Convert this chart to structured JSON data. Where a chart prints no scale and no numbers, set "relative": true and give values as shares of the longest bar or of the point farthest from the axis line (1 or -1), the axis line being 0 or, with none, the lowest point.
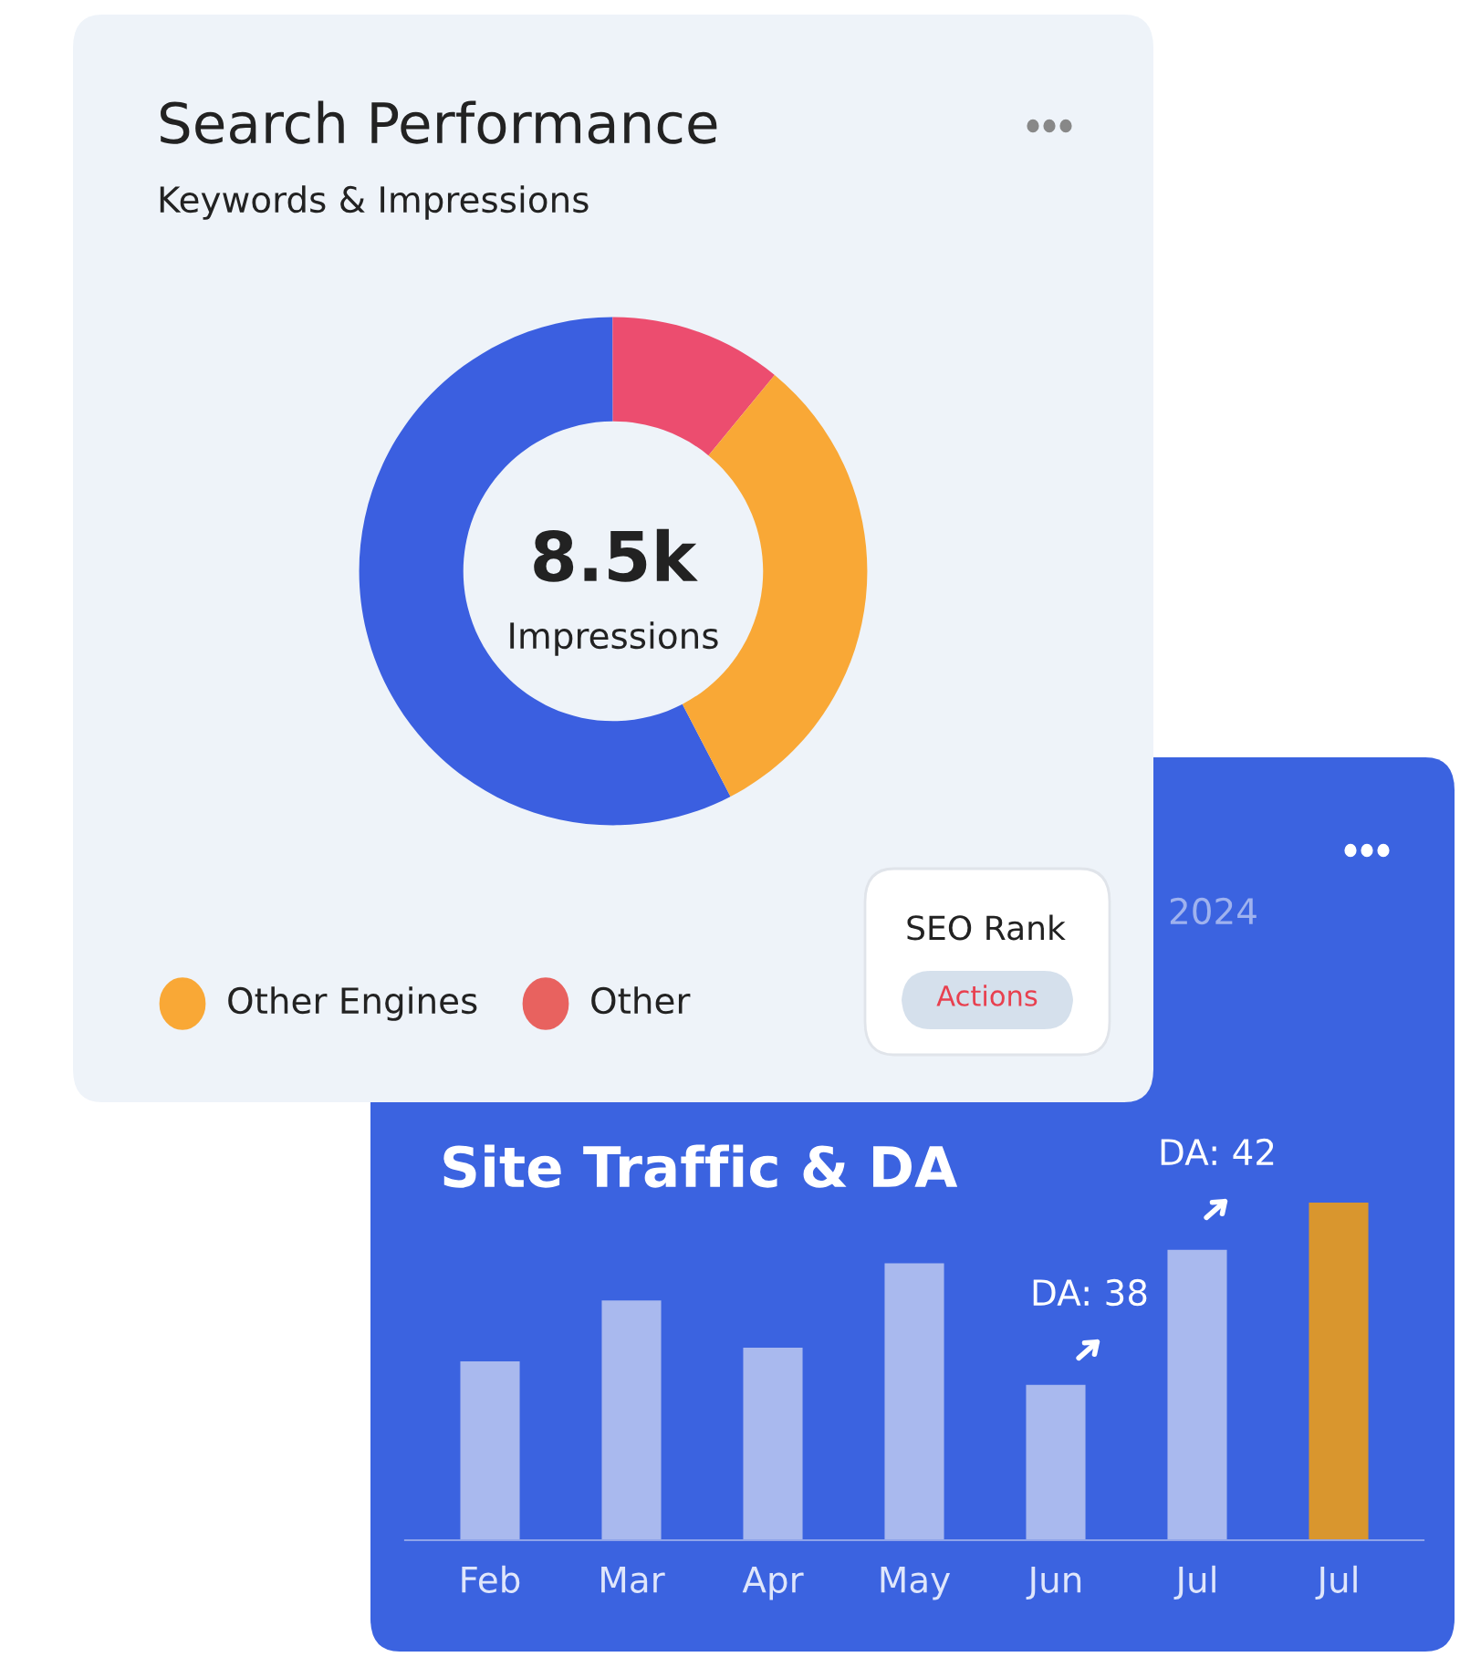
{
  "chart_data": [
    {
      "type": "donut",
      "title": "Search Performance",
      "subtitle": "Keywords & Impressions",
      "categories": [
        null,
        null,
        "Other Engines",
        "Other"
      ],
      "values": [
        57.6,
        11,
        31.4,
        0
      ],
      "colors": [
        "#3b5fe0",
        "#ec4d6f",
        "#f9a836",
        "#e8625f"
      ],
      "legend": "bottom",
      "annotations": [
        "8.5k",
        "Impressions",
        "SEO Rank",
        "Actions"
      ]
    },
    {
      "type": "bar",
      "title": "Site Traffic & DA",
      "categories": [
        "Feb",
        "Mar",
        "Apr",
        "May",
        "Jun",
        "Jul",
        "Jul"
      ],
      "relative": true,
      "values": [
        0.53,
        0.71,
        0.57,
        0.82,
        0.46,
        0.86,
        1
      ],
      "colors": [
        "#a9b9ee",
        "#a9b9ee",
        "#a9b9ee",
        "#a9b9ee",
        "#a9b9ee",
        "#a9b9ee",
        "#d9962e"
      ],
      "annotations": [
        "2024",
        "DA: 38",
        "DA: 42"
      ]
    }
  ]
}
